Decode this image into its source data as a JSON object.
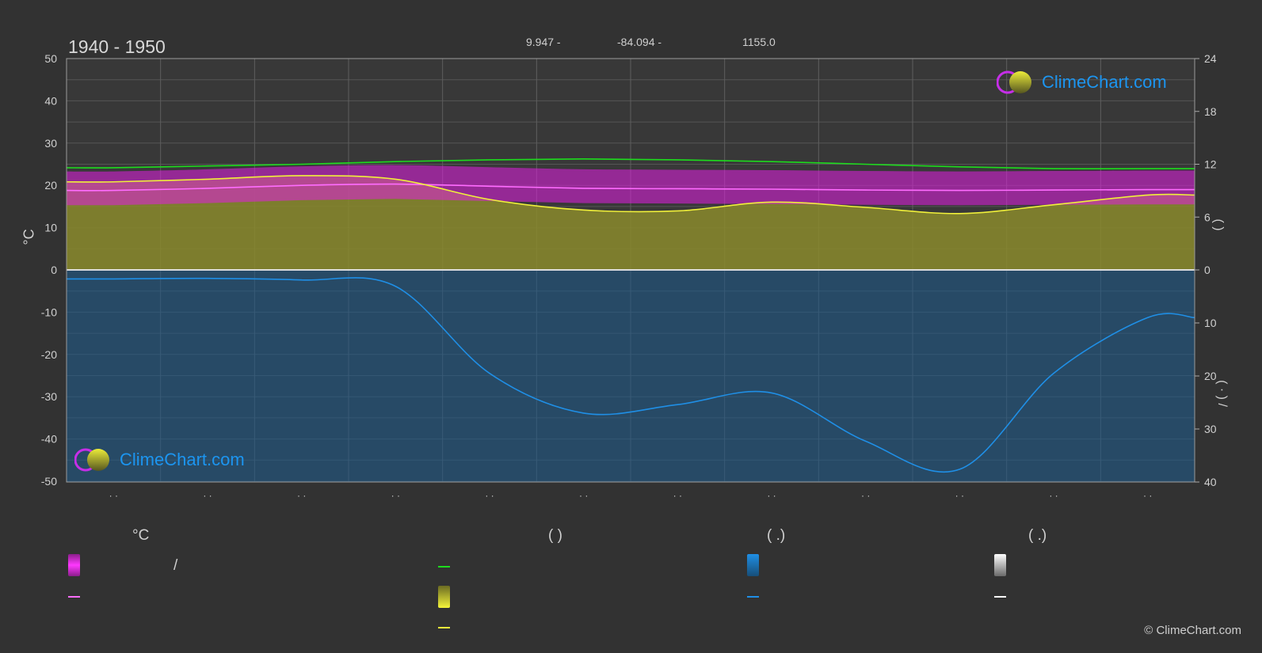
{
  "header": {
    "title": "1940 - 1950",
    "lat": "9.947 -",
    "lon": "-84.094 -",
    "elev": "1155.0"
  },
  "axes": {
    "left_label": "°C",
    "right_label_top": "(     )",
    "right_label_bottom": "(  ·  )   /",
    "month_tick_label": "· ·"
  },
  "legend": {
    "col1_header": "°C",
    "col1_row1_suffix": "/",
    "col2_header": "(          )",
    "col3_header": "(   .)",
    "col4_header": "(   .)"
  },
  "logo": {
    "text": "ClimeChart.com"
  },
  "copyright": "© ClimeChart.com",
  "colors": {
    "background": "#323232",
    "daylight": "#1ddc1d",
    "sunshine": "#f0f03a",
    "temp_mean": "#ff6cff",
    "temp_band": "#e21ee2",
    "precip": "#1f8fe6",
    "snow": "#ffffff",
    "logo_blue": "#1c95f0"
  },
  "chart_data": {
    "type": "line",
    "title": "1940 - 1950",
    "x": [
      0.5,
      1.5,
      2.5,
      3.5,
      4.5,
      5.5,
      6.5,
      7.5,
      8.5,
      9.5,
      10.5,
      11.5
    ],
    "left_axis": {
      "label": "°C",
      "ylim": [
        -50,
        50
      ],
      "ticks": [
        50,
        40,
        30,
        20,
        10,
        0,
        -10,
        -20,
        -30,
        -40,
        -50
      ]
    },
    "right_axis_top": {
      "ylim": [
        0,
        24
      ],
      "ticks": [
        24,
        18,
        12,
        6,
        0
      ]
    },
    "right_axis_bottom": {
      "ylim": [
        0,
        40
      ],
      "ticks": [
        0,
        10,
        20,
        30,
        40
      ]
    },
    "series": [
      {
        "axis": "right_top",
        "values": [
          11.6,
          11.8,
          12.0,
          12.3,
          12.5,
          12.6,
          12.5,
          12.3,
          12.0,
          11.7,
          11.5,
          11.5
        ]
      },
      {
        "axis": "right_top",
        "values": [
          10.0,
          10.3,
          10.7,
          10.3,
          8.0,
          6.8,
          6.7,
          7.7,
          7.1,
          6.4,
          7.4,
          8.5
        ]
      },
      {
        "axis": "left",
        "values": [
          18.8,
          19.3,
          20.0,
          20.3,
          19.8,
          19.3,
          19.2,
          19.1,
          18.9,
          18.8,
          18.9,
          19.0
        ]
      },
      {
        "axis": "right_bottom",
        "values": [
          1.7,
          1.6,
          1.9,
          3.1,
          19.5,
          27.0,
          25.4,
          23.2,
          32.3,
          37.6,
          19.5,
          9.0
        ]
      }
    ]
  }
}
